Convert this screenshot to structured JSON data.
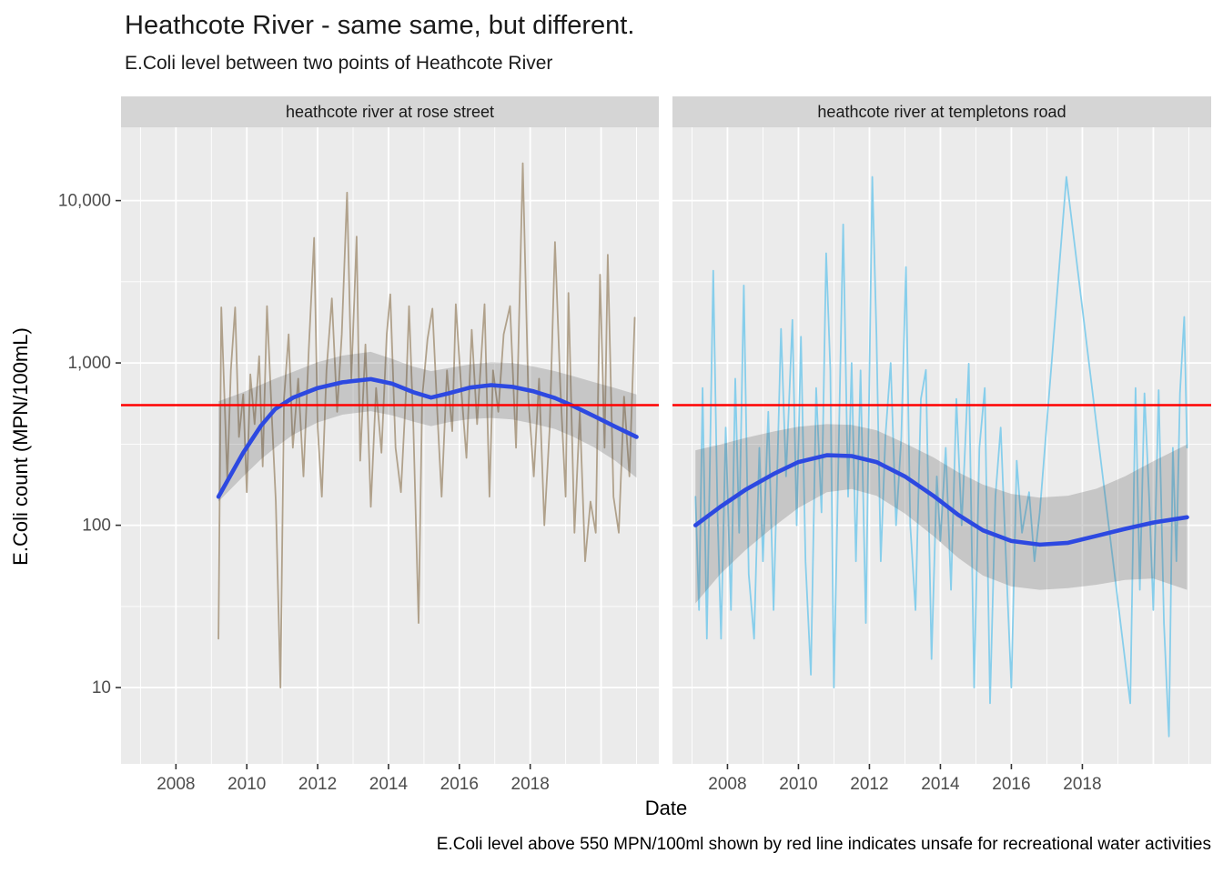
{
  "title": "Heathcote River - same same, but different.",
  "subtitle": "E.Coli level between two points of Heathcote River",
  "caption": "E.Coli level above 550 MPN/100ml shown by red line indicates unsafe for recreational water activities",
  "x_axis": {
    "label": "Date",
    "tick_labels": [
      "2008",
      "2010",
      "2012",
      "2014",
      "2016",
      "2018"
    ]
  },
  "y_axis": {
    "label": "E.Coli count (MPN/100mL)",
    "tick_labels": [
      {
        "value": 10,
        "label": "10"
      },
      {
        "value": 100,
        "label": "100"
      },
      {
        "value": 1000,
        "label": "1,000"
      },
      {
        "value": 10000,
        "label": "10,000"
      }
    ]
  },
  "colors": {
    "panel_bg": "#EBEBEB",
    "strip_bg": "#D5D5D5",
    "grid": "#FFFFFF",
    "threshold_red": "#FF0000",
    "smooth_blue": "#2D49E1",
    "rose_street_tan": "#B0A18B",
    "templetons_skyblue": "#87CEEB",
    "ribbon_gray": "rgba(80,80,80,0.24)",
    "tick_text": "#4D4D4D",
    "tick_mark": "#333333"
  },
  "chart_data": {
    "type": "line",
    "title": "Heathcote River - same same, but different.",
    "subtitle": "E.Coli level between two points of Heathcote River",
    "xlabel": "Date",
    "ylabel": "E.Coli count (MPN/100mL)",
    "y_scale": "log10",
    "x_domain": [
      2006.45,
      2021.63
    ],
    "y_domain": [
      3.4,
      28000
    ],
    "x_major_ticks": [
      2008,
      2010,
      2012,
      2014,
      2016,
      2018
    ],
    "x_major_grid_years": [
      2008,
      2010,
      2012,
      2014,
      2016,
      2018,
      2020
    ],
    "x_minor_grid_years": [
      2007,
      2009,
      2011,
      2013,
      2015,
      2017,
      2019,
      2021
    ],
    "y_major_ticks": [
      10,
      100,
      1000,
      10000
    ],
    "y_minor_ticks": [
      31.6,
      316,
      3162,
      31620
    ],
    "threshold": {
      "value": 550,
      "note": "unsafe level for recreational water activities"
    },
    "grid": true,
    "legend": "none",
    "facets": [
      {
        "label": "heathcote river at rose street",
        "line_color": "#B0A18B",
        "data": [
          [
            2009.2,
            20
          ],
          [
            2009.28,
            2200
          ],
          [
            2009.36,
            700
          ],
          [
            2009.45,
            190
          ],
          [
            2009.55,
            900
          ],
          [
            2009.67,
            2200
          ],
          [
            2009.78,
            350
          ],
          [
            2009.9,
            640
          ],
          [
            2010.0,
            160
          ],
          [
            2010.1,
            850
          ],
          [
            2010.22,
            420
          ],
          [
            2010.35,
            1100
          ],
          [
            2010.45,
            230
          ],
          [
            2010.57,
            2240
          ],
          [
            2010.7,
            500
          ],
          [
            2010.82,
            140
          ],
          [
            2010.95,
            10
          ],
          [
            2011.05,
            600
          ],
          [
            2011.18,
            1500
          ],
          [
            2011.3,
            300
          ],
          [
            2011.45,
            800
          ],
          [
            2011.6,
            200
          ],
          [
            2011.75,
            1200
          ],
          [
            2011.9,
            5900
          ],
          [
            2012.0,
            400
          ],
          [
            2012.12,
            150
          ],
          [
            2012.25,
            900
          ],
          [
            2012.4,
            2500
          ],
          [
            2012.55,
            500
          ],
          [
            2012.68,
            1500
          ],
          [
            2012.83,
            11200
          ],
          [
            2012.95,
            800
          ],
          [
            2013.1,
            6000
          ],
          [
            2013.2,
            250
          ],
          [
            2013.35,
            1300
          ],
          [
            2013.5,
            130
          ],
          [
            2013.65,
            700
          ],
          [
            2013.8,
            280
          ],
          [
            2013.95,
            1500
          ],
          [
            2014.05,
            2650
          ],
          [
            2014.2,
            300
          ],
          [
            2014.35,
            160
          ],
          [
            2014.5,
            700
          ],
          [
            2014.58,
            2240
          ],
          [
            2014.7,
            420
          ],
          [
            2014.85,
            25
          ],
          [
            2014.95,
            600
          ],
          [
            2015.1,
            1400
          ],
          [
            2015.24,
            2160
          ],
          [
            2015.38,
            480
          ],
          [
            2015.5,
            150
          ],
          [
            2015.65,
            900
          ],
          [
            2015.8,
            380
          ],
          [
            2015.9,
            2300
          ],
          [
            2016.05,
            700
          ],
          [
            2016.2,
            260
          ],
          [
            2016.35,
            1600
          ],
          [
            2016.5,
            420
          ],
          [
            2016.71,
            2300
          ],
          [
            2016.85,
            150
          ],
          [
            2016.95,
            900
          ],
          [
            2017.1,
            500
          ],
          [
            2017.25,
            1500
          ],
          [
            2017.43,
            2240
          ],
          [
            2017.6,
            300
          ],
          [
            2017.79,
            17000
          ],
          [
            2017.95,
            600
          ],
          [
            2018.1,
            200
          ],
          [
            2018.25,
            800
          ],
          [
            2018.4,
            100
          ],
          [
            2018.55,
            400
          ],
          [
            2018.7,
            5560
          ],
          [
            2018.85,
            700
          ],
          [
            2019.0,
            150
          ],
          [
            2019.08,
            2700
          ],
          [
            2019.25,
            90
          ],
          [
            2019.4,
            500
          ],
          [
            2019.55,
            60
          ],
          [
            2019.7,
            140
          ],
          [
            2019.85,
            90
          ],
          [
            2019.97,
            3500
          ],
          [
            2020.1,
            300
          ],
          [
            2020.19,
            4640
          ],
          [
            2020.35,
            150
          ],
          [
            2020.5,
            90
          ],
          [
            2020.65,
            620
          ],
          [
            2020.8,
            200
          ],
          [
            2020.95,
            1900
          ]
        ],
        "smooth": [
          [
            2009.2,
            150
          ],
          [
            2009.9,
            280
          ],
          [
            2010.4,
            410
          ],
          [
            2010.8,
            520
          ],
          [
            2011.3,
            610
          ],
          [
            2012.0,
            700
          ],
          [
            2012.7,
            760
          ],
          [
            2013.5,
            795
          ],
          [
            2014.1,
            745
          ],
          [
            2014.7,
            660
          ],
          [
            2015.2,
            612
          ],
          [
            2015.7,
            650
          ],
          [
            2016.3,
            705
          ],
          [
            2016.9,
            730
          ],
          [
            2017.5,
            712
          ],
          [
            2018.1,
            668
          ],
          [
            2018.7,
            608
          ],
          [
            2019.2,
            545
          ],
          [
            2019.8,
            470
          ],
          [
            2020.4,
            405
          ],
          [
            2021.0,
            350
          ]
        ],
        "ribbon": [
          [
            2009.2,
            140,
            580
          ],
          [
            2009.9,
            200,
            660
          ],
          [
            2010.4,
            255,
            735
          ],
          [
            2010.8,
            300,
            800
          ],
          [
            2011.3,
            360,
            880
          ],
          [
            2012.0,
            430,
            1010
          ],
          [
            2012.7,
            480,
            1110
          ],
          [
            2013.5,
            505,
            1170
          ],
          [
            2014.1,
            475,
            1060
          ],
          [
            2014.7,
            435,
            950
          ],
          [
            2015.2,
            408,
            890
          ],
          [
            2015.7,
            432,
            930
          ],
          [
            2016.3,
            452,
            980
          ],
          [
            2016.9,
            458,
            1010
          ],
          [
            2017.5,
            448,
            1000
          ],
          [
            2018.1,
            422,
            950
          ],
          [
            2018.7,
            392,
            890
          ],
          [
            2019.2,
            352,
            830
          ],
          [
            2019.8,
            302,
            762
          ],
          [
            2020.4,
            250,
            700
          ],
          [
            2021.0,
            196,
            640
          ]
        ]
      },
      {
        "label": "heathcote river at templetons road",
        "line_color": "#87CEEB",
        "data": [
          [
            2007.1,
            150
          ],
          [
            2007.2,
            30
          ],
          [
            2007.3,
            700
          ],
          [
            2007.42,
            20
          ],
          [
            2007.6,
            3700
          ],
          [
            2007.72,
            120
          ],
          [
            2007.82,
            20
          ],
          [
            2007.95,
            400
          ],
          [
            2008.1,
            30
          ],
          [
            2008.22,
            800
          ],
          [
            2008.33,
            90
          ],
          [
            2008.46,
            3000
          ],
          [
            2008.6,
            50
          ],
          [
            2008.75,
            20
          ],
          [
            2008.9,
            300
          ],
          [
            2009.0,
            60
          ],
          [
            2009.15,
            500
          ],
          [
            2009.3,
            30
          ],
          [
            2009.51,
            1620
          ],
          [
            2009.65,
            200
          ],
          [
            2009.83,
            1840
          ],
          [
            2009.95,
            100
          ],
          [
            2010.07,
            1450
          ],
          [
            2010.2,
            60
          ],
          [
            2010.35,
            12
          ],
          [
            2010.5,
            700
          ],
          [
            2010.65,
            120
          ],
          [
            2010.78,
            4740
          ],
          [
            2010.9,
            900
          ],
          [
            2011.0,
            10
          ],
          [
            2011.26,
            7130
          ],
          [
            2011.4,
            150
          ],
          [
            2011.5,
            1000
          ],
          [
            2011.62,
            60
          ],
          [
            2011.75,
            900
          ],
          [
            2011.9,
            25
          ],
          [
            2012.08,
            14000
          ],
          [
            2012.2,
            1480
          ],
          [
            2012.32,
            60
          ],
          [
            2012.45,
            350
          ],
          [
            2012.6,
            1000
          ],
          [
            2012.75,
            100
          ],
          [
            2012.9,
            350
          ],
          [
            2013.03,
            3900
          ],
          [
            2013.15,
            100
          ],
          [
            2013.3,
            30
          ],
          [
            2013.45,
            600
          ],
          [
            2013.59,
            906
          ],
          [
            2013.75,
            15
          ],
          [
            2013.9,
            200
          ],
          [
            2014.0,
            80
          ],
          [
            2014.15,
            300
          ],
          [
            2014.3,
            40
          ],
          [
            2014.45,
            600
          ],
          [
            2014.6,
            100
          ],
          [
            2014.8,
            990
          ],
          [
            2014.95,
            10
          ],
          [
            2015.1,
            300
          ],
          [
            2015.25,
            700
          ],
          [
            2015.4,
            8
          ],
          [
            2015.55,
            150
          ],
          [
            2015.7,
            400
          ],
          [
            2015.85,
            60
          ],
          [
            2016.0,
            10
          ],
          [
            2016.15,
            250
          ],
          [
            2016.3,
            90
          ],
          [
            2016.5,
            160
          ],
          [
            2016.65,
            60
          ],
          [
            2016.8,
            120
          ],
          [
            2017.55,
            14000
          ],
          [
            2019.35,
            8
          ],
          [
            2019.5,
            700
          ],
          [
            2019.62,
            40
          ],
          [
            2019.75,
            650
          ],
          [
            2019.88,
            150
          ],
          [
            2020.0,
            30
          ],
          [
            2020.15,
            680
          ],
          [
            2020.3,
            25
          ],
          [
            2020.44,
            5
          ],
          [
            2020.55,
            300
          ],
          [
            2020.65,
            60
          ],
          [
            2020.75,
            650
          ],
          [
            2020.87,
            1920
          ],
          [
            2020.95,
            300
          ]
        ],
        "smooth": [
          [
            2007.1,
            100
          ],
          [
            2007.8,
            130
          ],
          [
            2008.5,
            165
          ],
          [
            2009.3,
            207
          ],
          [
            2010.0,
            245
          ],
          [
            2010.8,
            270
          ],
          [
            2011.5,
            267
          ],
          [
            2012.2,
            245
          ],
          [
            2013.0,
            200
          ],
          [
            2013.8,
            152
          ],
          [
            2014.5,
            116
          ],
          [
            2015.2,
            93
          ],
          [
            2016.0,
            80
          ],
          [
            2016.8,
            76
          ],
          [
            2017.6,
            78
          ],
          [
            2018.4,
            86
          ],
          [
            2019.2,
            95
          ],
          [
            2020.0,
            104
          ],
          [
            2020.95,
            112
          ]
        ],
        "ribbon": [
          [
            2007.1,
            33,
            290
          ],
          [
            2007.8,
            50,
            315
          ],
          [
            2008.5,
            70,
            345
          ],
          [
            2009.3,
            98,
            378
          ],
          [
            2010.0,
            128,
            405
          ],
          [
            2010.8,
            160,
            420
          ],
          [
            2011.5,
            167,
            415
          ],
          [
            2012.2,
            152,
            385
          ],
          [
            2013.0,
            118,
            320
          ],
          [
            2013.8,
            86,
            262
          ],
          [
            2014.5,
            63,
            212
          ],
          [
            2015.2,
            49,
            178
          ],
          [
            2016.0,
            42,
            156
          ],
          [
            2016.8,
            40,
            148
          ],
          [
            2017.6,
            41,
            152
          ],
          [
            2018.4,
            43,
            168
          ],
          [
            2019.2,
            46,
            200
          ],
          [
            2020.0,
            47,
            248
          ],
          [
            2020.95,
            40,
            315
          ]
        ]
      }
    ]
  }
}
